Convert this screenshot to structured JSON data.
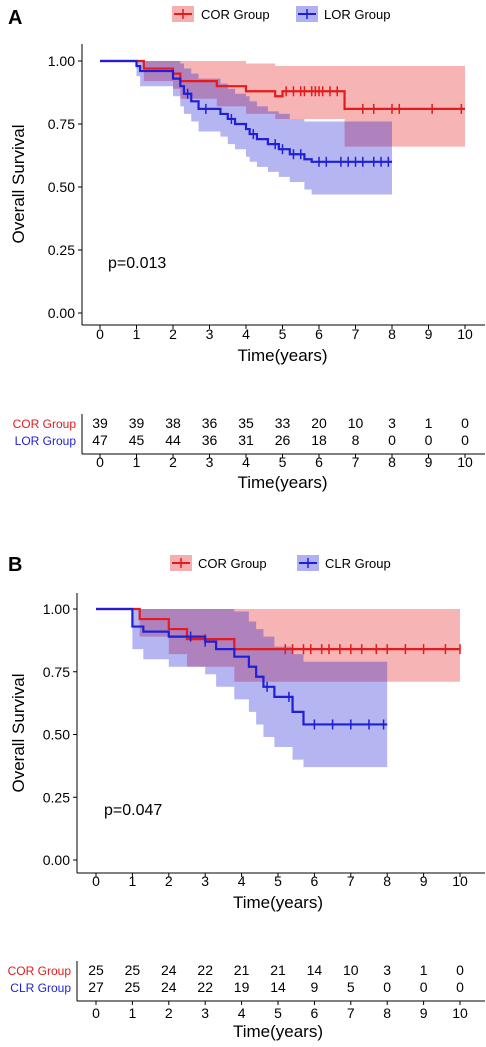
{
  "panels": [
    {
      "label": "A",
      "legend": [
        {
          "name": "COR Group",
          "color": "#e41a1c"
        },
        {
          "name": "LOR Group",
          "color": "#1f1fd6"
        }
      ],
      "pvalue": "p=0.013",
      "risk_table": {
        "xlabel": "Time(years)",
        "times": [
          "0",
          "1",
          "2",
          "3",
          "4",
          "5",
          "6",
          "7",
          "8",
          "9",
          "10"
        ],
        "rows": [
          {
            "label": "COR Group",
            "color": "#e41a1c",
            "values": [
              "39",
              "39",
              "38",
              "36",
              "35",
              "33",
              "20",
              "10",
              "3",
              "1",
              "0"
            ]
          },
          {
            "label": "LOR Group",
            "color": "#1f1fd6",
            "values": [
              "47",
              "45",
              "44",
              "36",
              "31",
              "26",
              "18",
              "8",
              "0",
              "0",
              "0"
            ]
          }
        ]
      }
    },
    {
      "label": "B",
      "legend": [
        {
          "name": "COR Group",
          "color": "#e41a1c"
        },
        {
          "name": "CLR Group",
          "color": "#1f1fd6"
        }
      ],
      "pvalue": "p=0.047",
      "risk_table": {
        "xlabel": "Time(years)",
        "times": [
          "0",
          "1",
          "2",
          "3",
          "4",
          "5",
          "6",
          "7",
          "8",
          "9",
          "10"
        ],
        "rows": [
          {
            "label": "COR Group",
            "color": "#e41a1c",
            "values": [
              "25",
              "25",
              "24",
              "22",
              "21",
              "21",
              "14",
              "10",
              "3",
              "1",
              "0"
            ]
          },
          {
            "label": "CLR Group",
            "color": "#1f1fd6",
            "values": [
              "27",
              "25",
              "24",
              "22",
              "19",
              "14",
              "9",
              "5",
              "0",
              "0",
              "0"
            ]
          }
        ]
      }
    }
  ],
  "chart_data": [
    {
      "type": "line",
      "step": true,
      "xlabel": "Time(years)",
      "ylabel": "Overall Survival",
      "xlim": [
        0,
        10
      ],
      "ylim": [
        0,
        1
      ],
      "xticks": [
        "0",
        "1",
        "2",
        "3",
        "4",
        "5",
        "6",
        "7",
        "8",
        "9",
        "10"
      ],
      "yticks": [
        "0.00",
        "0.25",
        "0.50",
        "0.75",
        "1.00"
      ],
      "grid": false,
      "legend_position": "top",
      "series": [
        {
          "name": "COR Group",
          "color": "#e41a1c",
          "steps": [
            [
              0,
              1.0
            ],
            [
              1.2,
              0.97
            ],
            [
              2.0,
              0.95
            ],
            [
              2.2,
              0.92
            ],
            [
              3.2,
              0.9
            ],
            [
              4.0,
              0.88
            ],
            [
              4.8,
              0.86
            ],
            [
              5.0,
              0.88
            ],
            [
              6.7,
              0.81
            ],
            [
              10.0,
              0.81
            ]
          ],
          "ci_steps": [
            [
              0,
              1.0,
              1.0
            ],
            [
              1.2,
              0.92,
              1.0
            ],
            [
              2.0,
              0.89,
              1.0
            ],
            [
              2.2,
              0.85,
              1.0
            ],
            [
              3.2,
              0.82,
              1.0
            ],
            [
              4.0,
              0.79,
              0.99
            ],
            [
              4.8,
              0.77,
              0.98
            ],
            [
              6.7,
              0.66,
              0.98
            ],
            [
              10.0,
              0.66,
              0.98
            ]
          ],
          "censor_x": [
            5.1,
            5.3,
            5.5,
            5.6,
            5.8,
            5.9,
            6.0,
            6.1,
            6.3,
            6.5,
            7.2,
            7.5,
            8.0,
            8.2,
            9.1,
            9.9
          ]
        },
        {
          "name": "LOR Group",
          "color": "#1f1fd6",
          "steps": [
            [
              0,
              1.0
            ],
            [
              1.0,
              0.98
            ],
            [
              1.1,
              0.96
            ],
            [
              2.0,
              0.93
            ],
            [
              2.2,
              0.9
            ],
            [
              2.3,
              0.87
            ],
            [
              2.5,
              0.84
            ],
            [
              2.7,
              0.81
            ],
            [
              3.3,
              0.79
            ],
            [
              3.5,
              0.77
            ],
            [
              3.7,
              0.75
            ],
            [
              4.0,
              0.73
            ],
            [
              4.1,
              0.71
            ],
            [
              4.3,
              0.69
            ],
            [
              4.6,
              0.67
            ],
            [
              4.9,
              0.65
            ],
            [
              5.2,
              0.63
            ],
            [
              5.6,
              0.61
            ],
            [
              5.8,
              0.6
            ],
            [
              8.0,
              0.6
            ]
          ],
          "ci_steps": [
            [
              0,
              1.0,
              1.0
            ],
            [
              1.0,
              0.94,
              1.0
            ],
            [
              1.1,
              0.9,
              1.0
            ],
            [
              2.0,
              0.86,
              1.0
            ],
            [
              2.2,
              0.82,
              0.99
            ],
            [
              2.3,
              0.79,
              0.97
            ],
            [
              2.5,
              0.76,
              0.95
            ],
            [
              2.7,
              0.72,
              0.93
            ],
            [
              3.3,
              0.7,
              0.91
            ],
            [
              3.5,
              0.67,
              0.89
            ],
            [
              3.7,
              0.65,
              0.87
            ],
            [
              4.0,
              0.62,
              0.86
            ],
            [
              4.1,
              0.6,
              0.84
            ],
            [
              4.3,
              0.58,
              0.82
            ],
            [
              4.6,
              0.56,
              0.8
            ],
            [
              4.9,
              0.54,
              0.79
            ],
            [
              5.2,
              0.52,
              0.77
            ],
            [
              5.6,
              0.49,
              0.76
            ],
            [
              5.8,
              0.47,
              0.76
            ],
            [
              8.0,
              0.47,
              0.76
            ]
          ],
          "censor_x": [
            2.4,
            2.9,
            3.6,
            4.2,
            4.8,
            5.0,
            5.3,
            5.5,
            6.0,
            6.2,
            6.6,
            6.8,
            7.0,
            7.2,
            7.5,
            7.7,
            7.9
          ]
        }
      ],
      "annotations": [
        "p=0.013"
      ]
    },
    {
      "type": "line",
      "step": true,
      "xlabel": "Time(years)",
      "ylabel": "Overall Survival",
      "xlim": [
        0,
        10
      ],
      "ylim": [
        0,
        1
      ],
      "xticks": [
        "0",
        "1",
        "2",
        "3",
        "4",
        "5",
        "6",
        "7",
        "8",
        "9",
        "10"
      ],
      "yticks": [
        "0.00",
        "0.25",
        "0.50",
        "0.75",
        "1.00"
      ],
      "grid": false,
      "legend_position": "top",
      "series": [
        {
          "name": "COR Group",
          "color": "#e41a1c",
          "steps": [
            [
              0,
              1.0
            ],
            [
              1.2,
              0.96
            ],
            [
              2.0,
              0.92
            ],
            [
              2.5,
              0.88
            ],
            [
              3.1,
              0.88
            ],
            [
              3.8,
              0.84
            ],
            [
              10.0,
              0.84
            ]
          ],
          "ci_steps": [
            [
              0,
              1.0,
              1.0
            ],
            [
              1.2,
              0.89,
              1.0
            ],
            [
              2.0,
              0.82,
              1.0
            ],
            [
              2.5,
              0.77,
              1.0
            ],
            [
              3.8,
              0.71,
              1.0
            ],
            [
              10.0,
              0.71,
              1.0
            ]
          ],
          "censor_x": [
            3.0,
            5.2,
            5.4,
            5.7,
            5.9,
            6.2,
            6.4,
            6.7,
            7.0,
            7.3,
            7.7,
            8.0,
            8.5,
            9.0,
            9.6,
            10.0
          ]
        },
        {
          "name": "CLR Group",
          "color": "#1f1fd6",
          "steps": [
            [
              0,
              1.0
            ],
            [
              1.0,
              0.93
            ],
            [
              1.3,
              0.91
            ],
            [
              2.0,
              0.89
            ],
            [
              3.0,
              0.87
            ],
            [
              3.3,
              0.84
            ],
            [
              3.8,
              0.81
            ],
            [
              4.2,
              0.77
            ],
            [
              4.4,
              0.73
            ],
            [
              4.6,
              0.69
            ],
            [
              4.9,
              0.65
            ],
            [
              5.4,
              0.59
            ],
            [
              5.7,
              0.54
            ],
            [
              8.0,
              0.54
            ]
          ],
          "ci_steps": [
            [
              0,
              1.0,
              1.0
            ],
            [
              1.0,
              0.84,
              1.0
            ],
            [
              1.3,
              0.8,
              1.0
            ],
            [
              2.0,
              0.77,
              1.0
            ],
            [
              3.0,
              0.74,
              1.0
            ],
            [
              3.3,
              0.69,
              1.0
            ],
            [
              3.8,
              0.64,
              0.99
            ],
            [
              4.2,
              0.59,
              0.95
            ],
            [
              4.4,
              0.54,
              0.92
            ],
            [
              4.6,
              0.49,
              0.89
            ],
            [
              4.9,
              0.45,
              0.85
            ],
            [
              5.4,
              0.4,
              0.82
            ],
            [
              5.7,
              0.37,
              0.79
            ],
            [
              8.0,
              0.37,
              0.79
            ]
          ],
          "censor_x": [
            2.6,
            3.0,
            4.7,
            5.3,
            6.0,
            6.5,
            7.0,
            7.5,
            7.9
          ]
        }
      ],
      "annotations": [
        "p=0.047"
      ]
    }
  ]
}
